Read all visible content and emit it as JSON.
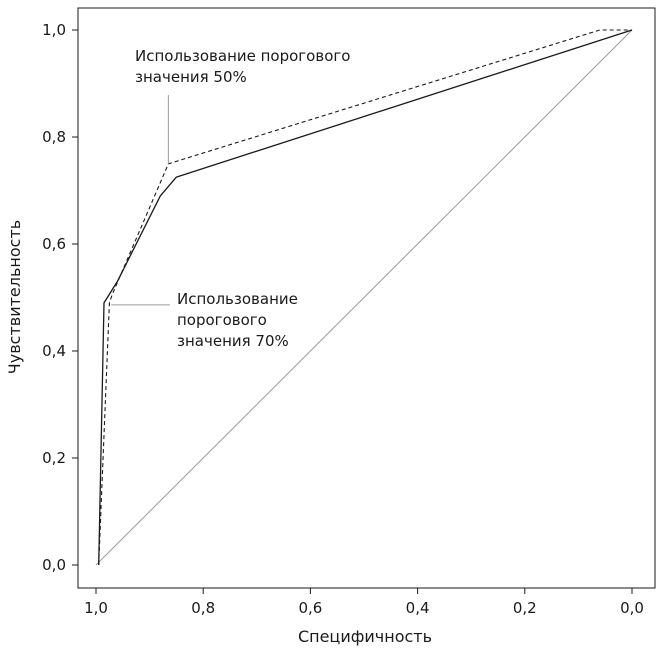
{
  "chart_data": {
    "type": "line",
    "xlabel": "Специфичность",
    "ylabel": "Чувствительность",
    "x_reversed": true,
    "xlim": [
      1.0,
      0.0
    ],
    "ylim": [
      0.0,
      1.0
    ],
    "grid": false,
    "x_ticks": [
      {
        "value": 1.0,
        "label": "1,0"
      },
      {
        "value": 0.8,
        "label": "0,8"
      },
      {
        "value": 0.6,
        "label": "0,6"
      },
      {
        "value": 0.4,
        "label": "0,4"
      },
      {
        "value": 0.2,
        "label": "0,2"
      },
      {
        "value": 0.0,
        "label": "0,0"
      }
    ],
    "y_ticks": [
      {
        "value": 0.0,
        "label": "0,0"
      },
      {
        "value": 0.2,
        "label": "0,2"
      },
      {
        "value": 0.4,
        "label": "0,4"
      },
      {
        "value": 0.6,
        "label": "0,6"
      },
      {
        "value": 0.8,
        "label": "0,8"
      },
      {
        "value": 1.0,
        "label": "1,0"
      }
    ],
    "series": [
      {
        "style": "solid",
        "color": "#1a1a1a",
        "points": [
          {
            "x": 0.995,
            "y": 0.0
          },
          {
            "x": 0.985,
            "y": 0.49
          },
          {
            "x": 0.96,
            "y": 0.53
          },
          {
            "x": 0.88,
            "y": 0.69
          },
          {
            "x": 0.85,
            "y": 0.725
          },
          {
            "x": 0.0,
            "y": 1.0
          }
        ]
      },
      {
        "style": "dashed",
        "color": "#1a1a1a",
        "points": [
          {
            "x": 0.995,
            "y": 0.0
          },
          {
            "x": 0.975,
            "y": 0.49
          },
          {
            "x": 0.97,
            "y": 0.505
          },
          {
            "x": 0.865,
            "y": 0.75
          },
          {
            "x": 0.06,
            "y": 1.0
          },
          {
            "x": 0.0,
            "y": 1.0
          }
        ]
      },
      {
        "style": "reference",
        "color": "#9a9a9a",
        "points": [
          {
            "x": 1.0,
            "y": 0.0
          },
          {
            "x": 0.0,
            "y": 1.0
          }
        ]
      }
    ],
    "annotations": [
      {
        "lines": [
          "Использование порогового",
          "значения 50%"
        ],
        "target": {
          "x": 0.865,
          "y": 0.75
        }
      },
      {
        "lines": [
          "Использование",
          "порогового",
          "значения 70%"
        ],
        "target": {
          "x": 0.975,
          "y": 0.49
        }
      }
    ]
  }
}
